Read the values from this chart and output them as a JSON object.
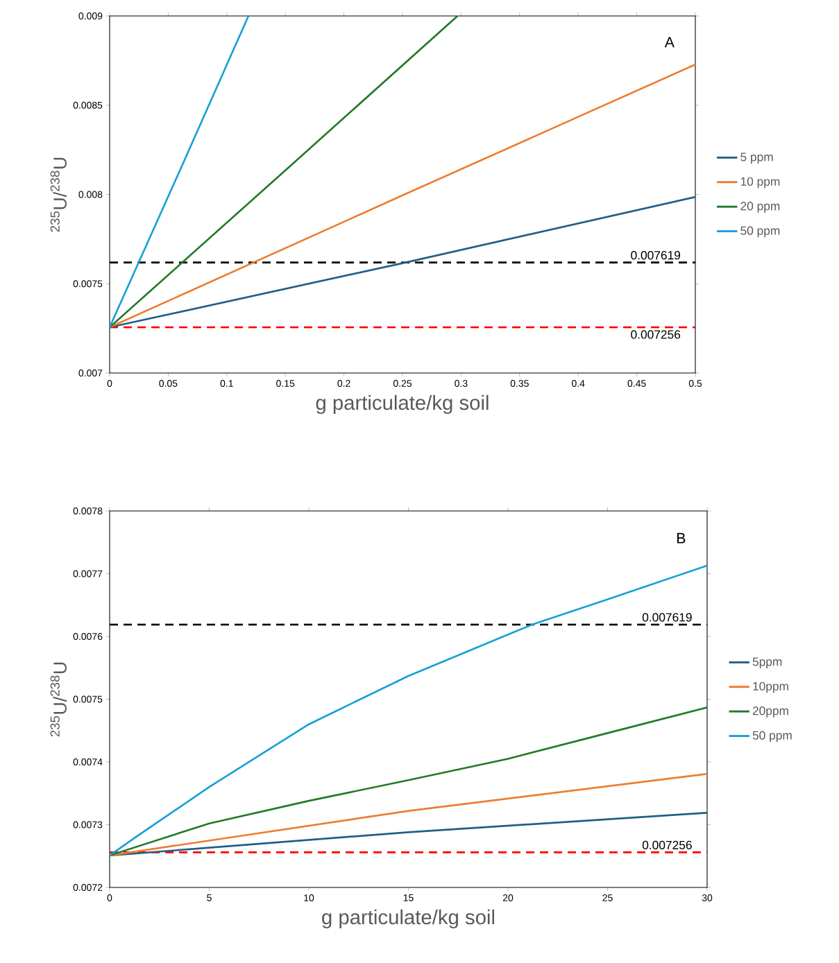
{
  "chart_data": [
    {
      "type": "line",
      "xlabel": "g particulate/kg soil",
      "ylabel": "$^{235}$U/$^{238}$U",
      "annotations": [
        "A"
      ],
      "xlim": [
        0,
        0.5
      ],
      "ylim": [
        0.007,
        0.009
      ],
      "xticks": [
        0,
        0.05,
        0.1,
        0.15,
        0.2,
        0.25,
        0.3,
        0.35,
        0.4,
        0.45,
        0.5
      ],
      "yticks": [
        0.007,
        0.0075,
        0.008,
        0.0085,
        0.009
      ],
      "grid": false,
      "legend": "right",
      "marker": "none",
      "line_style": "solid",
      "series": [
        {
          "name": "5 ppm",
          "color": "#215f86",
          "x": [
            0,
            0.25,
            0.5
          ],
          "values": [
            0.007256,
            0.007615,
            0.007986
          ]
        },
        {
          "name": "10 ppm",
          "color": "#ed7d31",
          "x": [
            0,
            0.25,
            0.5
          ],
          "values": [
            0.007256,
            0.007995,
            0.008728
          ]
        },
        {
          "name": "20 ppm",
          "color": "#217a2a",
          "x": [
            0,
            0.15,
            0.297
          ],
          "values": [
            0.007256,
            0.008135,
            0.009
          ]
        },
        {
          "name": "50 ppm",
          "color": "#18a0d7",
          "x": [
            0,
            0.06,
            0.1185
          ],
          "values": [
            0.007256,
            0.008135,
            0.009
          ]
        }
      ],
      "ref_lines": [
        {
          "axis": "y",
          "value": 0.007619,
          "label": "0.007619",
          "color": "#000000",
          "line_style": "dashed"
        },
        {
          "axis": "y",
          "value": 0.007256,
          "label": "0.007256",
          "color": "#ff0000",
          "line_style": "dashed"
        }
      ]
    },
    {
      "type": "line",
      "xlabel": "g particulate/kg soil",
      "ylabel": "$^{235}$U/$^{238}$U",
      "annotations": [
        "B"
      ],
      "xlim": [
        0,
        30
      ],
      "ylim": [
        0.0072,
        0.0078
      ],
      "xticks": [
        0,
        5,
        10,
        15,
        20,
        25,
        30
      ],
      "yticks": [
        0.0072,
        0.0073,
        0.0074,
        0.0075,
        0.0076,
        0.0077,
        0.0078
      ],
      "grid": false,
      "legend": "right",
      "marker": "none",
      "line_style": "solid",
      "series": [
        {
          "name": "5ppm",
          "color": "#215f86",
          "x": [
            0,
            15,
            30
          ],
          "values": [
            0.007251,
            0.007288,
            0.007319
          ]
        },
        {
          "name": "10ppm",
          "color": "#ed7d31",
          "x": [
            0,
            15,
            30
          ],
          "values": [
            0.007251,
            0.007322,
            0.007381
          ]
        },
        {
          "name": "20ppm",
          "color": "#217a2a",
          "x": [
            0,
            5,
            10,
            15,
            20,
            25,
            30
          ],
          "values": [
            0.007251,
            0.007302,
            0.007338,
            0.007371,
            0.007405,
            0.007446,
            0.007487
          ]
        },
        {
          "name": "50 ppm",
          "color": "#18a0d7",
          "x": [
            0,
            1.3,
            5,
            10,
            15,
            20,
            21.3,
            25,
            30
          ],
          "values": [
            0.007251,
            0.00728,
            0.00736,
            0.00746,
            0.007537,
            0.007603,
            0.00762,
            0.007659,
            0.007713
          ]
        }
      ],
      "ref_lines": [
        {
          "axis": "y",
          "value": 0.007619,
          "label": "0.007619",
          "color": "#000000",
          "line_style": "dashed"
        },
        {
          "axis": "y",
          "value": 0.007256,
          "label": "0.007256",
          "color": "#ff0000",
          "line_style": "dashed"
        }
      ]
    }
  ]
}
